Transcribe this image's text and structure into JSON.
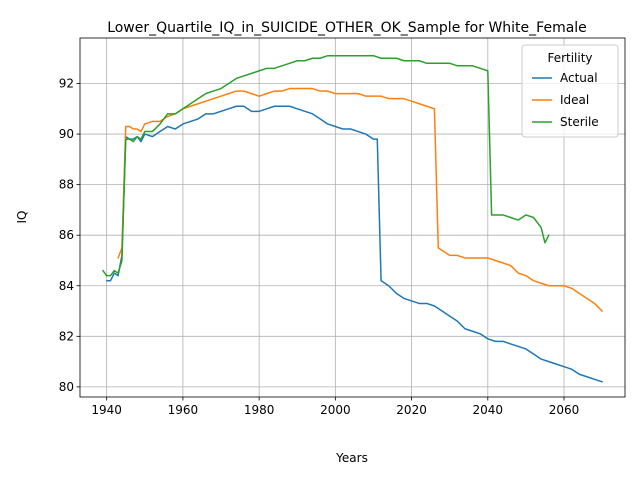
{
  "chart_data": {
    "type": "line",
    "title": "Lower_Quartile_IQ_in_SUICIDE_OTHER_OK_Sample for White_Female",
    "xlabel": "Years",
    "ylabel": "IQ",
    "xlim": [
      1933,
      2076
    ],
    "ylim": [
      79.6,
      93.8
    ],
    "xticks": [
      1940,
      1960,
      1980,
      2000,
      2020,
      2040,
      2060
    ],
    "yticks": [
      80,
      82,
      84,
      86,
      88,
      90,
      92
    ],
    "grid": true,
    "legend": {
      "title": "Fertility",
      "position": "top-right"
    },
    "series": [
      {
        "name": "Actual",
        "color": "#1f77b4",
        "x": [
          1940,
          1941,
          1942,
          1943,
          1944,
          1945,
          1946,
          1947,
          1948,
          1949,
          1950,
          1952,
          1954,
          1956,
          1958,
          1960,
          1962,
          1964,
          1966,
          1968,
          1970,
          1972,
          1974,
          1976,
          1978,
          1980,
          1982,
          1984,
          1986,
          1988,
          1990,
          1992,
          1994,
          1996,
          1998,
          2000,
          2002,
          2004,
          2006,
          2008,
          2010,
          2011,
          2012,
          2014,
          2016,
          2018,
          2020,
          2022,
          2024,
          2026,
          2028,
          2030,
          2032,
          2034,
          2036,
          2038,
          2040,
          2042,
          2044,
          2046,
          2048,
          2050,
          2052,
          2054,
          2056,
          2058,
          2060,
          2062,
          2064,
          2066,
          2068,
          2070
        ],
        "values": [
          84.2,
          84.2,
          84.5,
          84.4,
          85.2,
          89.9,
          89.8,
          89.8,
          89.9,
          89.7,
          90.0,
          89.9,
          90.1,
          90.3,
          90.2,
          90.4,
          90.5,
          90.6,
          90.8,
          90.8,
          90.9,
          91.0,
          91.1,
          91.1,
          90.9,
          90.9,
          91.0,
          91.1,
          91.1,
          91.1,
          91.0,
          90.9,
          90.8,
          90.6,
          90.4,
          90.3,
          90.2,
          90.2,
          90.1,
          90.0,
          89.8,
          89.8,
          84.2,
          84.0,
          83.7,
          83.5,
          83.4,
          83.3,
          83.3,
          83.2,
          83.0,
          82.8,
          82.6,
          82.3,
          82.2,
          82.1,
          81.9,
          81.8,
          81.8,
          81.7,
          81.6,
          81.5,
          81.3,
          81.1,
          81.0,
          80.9,
          80.8,
          80.7,
          80.5,
          80.4,
          80.3,
          80.2
        ]
      },
      {
        "name": "Ideal",
        "color": "#ff7f0e",
        "x": [
          1943,
          1944,
          1945,
          1946,
          1947,
          1948,
          1949,
          1950,
          1952,
          1954,
          1956,
          1958,
          1960,
          1962,
          1964,
          1966,
          1968,
          1970,
          1972,
          1974,
          1976,
          1978,
          1980,
          1982,
          1984,
          1986,
          1988,
          1990,
          1992,
          1994,
          1996,
          1998,
          2000,
          2002,
          2004,
          2006,
          2008,
          2010,
          2012,
          2014,
          2016,
          2018,
          2020,
          2022,
          2024,
          2026,
          2027,
          2028,
          2030,
          2032,
          2034,
          2036,
          2038,
          2040,
          2042,
          2044,
          2046,
          2048,
          2050,
          2052,
          2054,
          2056,
          2058,
          2060,
          2062,
          2064,
          2066,
          2068,
          2070
        ],
        "values": [
          85.1,
          85.5,
          90.3,
          90.3,
          90.2,
          90.2,
          90.1,
          90.4,
          90.5,
          90.5,
          90.7,
          90.8,
          91.0,
          91.1,
          91.2,
          91.3,
          91.4,
          91.5,
          91.6,
          91.7,
          91.7,
          91.6,
          91.5,
          91.6,
          91.7,
          91.7,
          91.8,
          91.8,
          91.8,
          91.8,
          91.7,
          91.7,
          91.6,
          91.6,
          91.6,
          91.6,
          91.5,
          91.5,
          91.5,
          91.4,
          91.4,
          91.4,
          91.3,
          91.2,
          91.1,
          91.0,
          85.5,
          85.4,
          85.2,
          85.2,
          85.1,
          85.1,
          85.1,
          85.1,
          85.0,
          84.9,
          84.8,
          84.5,
          84.4,
          84.2,
          84.1,
          84.0,
          84.0,
          84.0,
          83.9,
          83.7,
          83.5,
          83.3,
          83.0
        ]
      },
      {
        "name": "Sterile",
        "color": "#2ca02c",
        "x": [
          1939,
          1940,
          1941,
          1942,
          1943,
          1944,
          1945,
          1946,
          1947,
          1948,
          1949,
          1950,
          1952,
          1954,
          1956,
          1958,
          1960,
          1962,
          1964,
          1966,
          1968,
          1970,
          1972,
          1974,
          1976,
          1978,
          1980,
          1982,
          1984,
          1986,
          1988,
          1990,
          1992,
          1994,
          1996,
          1998,
          2000,
          2002,
          2004,
          2006,
          2008,
          2010,
          2012,
          2014,
          2016,
          2018,
          2020,
          2022,
          2024,
          2026,
          2028,
          2030,
          2032,
          2034,
          2036,
          2038,
          2040,
          2041,
          2042,
          2044,
          2046,
          2048,
          2050,
          2052,
          2054,
          2055,
          2056
        ],
        "values": [
          84.6,
          84.4,
          84.4,
          84.6,
          84.5,
          85.0,
          89.8,
          89.8,
          89.7,
          89.9,
          89.8,
          90.1,
          90.1,
          90.4,
          90.8,
          90.8,
          91.0,
          91.2,
          91.4,
          91.6,
          91.7,
          91.8,
          92.0,
          92.2,
          92.3,
          92.4,
          92.5,
          92.6,
          92.6,
          92.7,
          92.8,
          92.9,
          92.9,
          93.0,
          93.0,
          93.1,
          93.1,
          93.1,
          93.1,
          93.1,
          93.1,
          93.1,
          93.0,
          93.0,
          93.0,
          92.9,
          92.9,
          92.9,
          92.8,
          92.8,
          92.8,
          92.8,
          92.7,
          92.7,
          92.7,
          92.6,
          92.5,
          86.8,
          86.8,
          86.8,
          86.7,
          86.6,
          86.8,
          86.7,
          86.3,
          85.7,
          86.0
        ]
      }
    ]
  }
}
